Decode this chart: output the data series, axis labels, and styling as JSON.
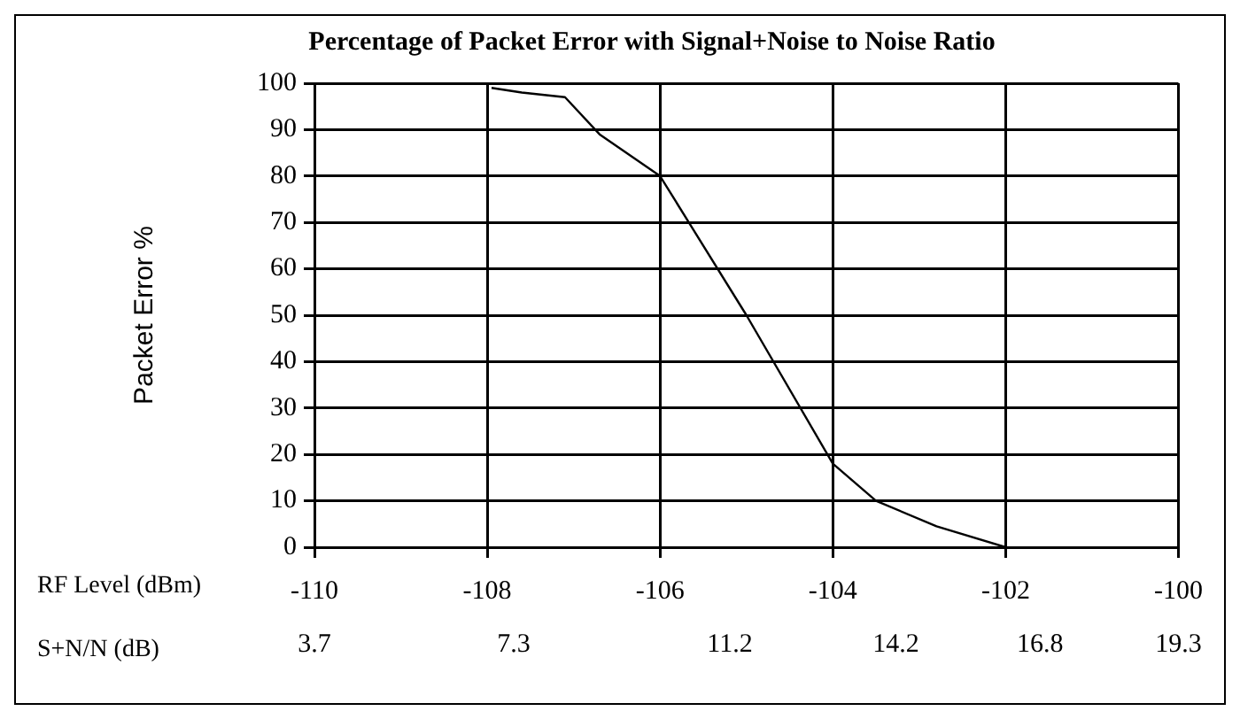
{
  "chart_data": {
    "type": "line",
    "title": "Percentage of Packet Error with Signal+Noise to Noise Ratio",
    "xlabel": "RF Level (dBm)",
    "x2label": "S+N/N (dB)",
    "ylabel": "Packet Error %",
    "x": [
      -107.95,
      -107.6,
      -107.1,
      -106.7,
      -106,
      -105,
      -104,
      -103.5,
      -102.8,
      -102
    ],
    "series": [
      {
        "color": "#000000",
        "values": [
          99,
          98,
          97,
          89,
          80,
          50,
          18,
          10,
          4.5,
          0
        ]
      }
    ],
    "xlim": [
      -110,
      -100
    ],
    "xticks": [
      -110,
      -108,
      -106,
      -104,
      -102,
      -100
    ],
    "x2lim": [
      3.7,
      19.3
    ],
    "x2ticks": [
      3.7,
      7.3,
      11.2,
      14.2,
      16.8,
      19.3
    ],
    "ylim": [
      0,
      100
    ],
    "yticks": [
      0,
      10,
      20,
      30,
      40,
      50,
      60,
      70,
      80,
      90,
      100
    ],
    "grid": true,
    "legend": false,
    "marker": "none",
    "line_style": "solid"
  }
}
